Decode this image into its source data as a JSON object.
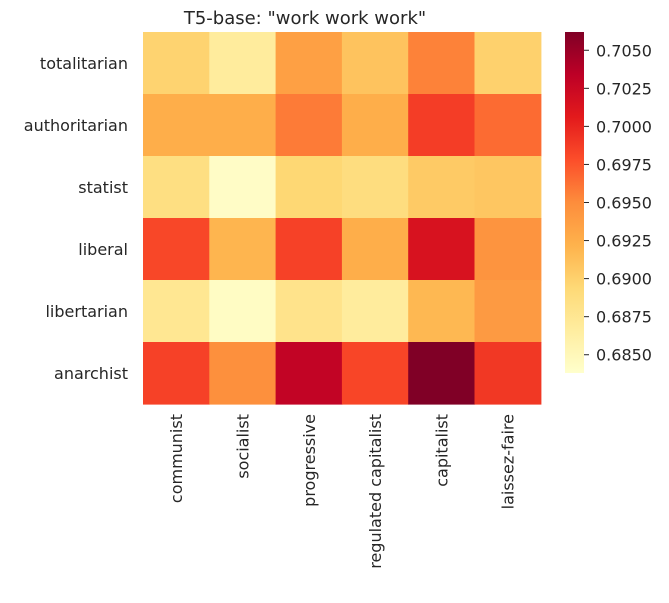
{
  "chart_data": {
    "type": "heatmap",
    "title": "T5-base: \"work work work\"",
    "xlabel": "",
    "ylabel": "",
    "x_categories": [
      "communist",
      "socialist",
      "progressive",
      "regulated capitalist",
      "capitalist",
      "laissez-faire"
    ],
    "y_categories": [
      "totalitarian",
      "authoritarian",
      "statist",
      "liberal",
      "libertarian",
      "anarchist"
    ],
    "values": [
      [
        0.6898,
        0.6868,
        0.6936,
        0.691,
        0.6955,
        0.69
      ],
      [
        0.6925,
        0.6925,
        0.6958,
        0.6925,
        0.6987,
        0.6965
      ],
      [
        0.6886,
        0.6842,
        0.6895,
        0.6888,
        0.6905,
        0.6908
      ],
      [
        0.6982,
        0.692,
        0.6985,
        0.6925,
        0.7015,
        0.6945
      ],
      [
        0.6875,
        0.6843,
        0.688,
        0.6868,
        0.6918,
        0.694
      ],
      [
        0.6985,
        0.6948,
        0.703,
        0.6983,
        0.7062,
        0.699
      ]
    ],
    "colormap": "YlOrRd",
    "vmin": 0.6838,
    "vmax": 0.7062,
    "colorbar_ticks": [
      "0.6850",
      "0.6875",
      "0.6900",
      "0.6925",
      "0.6950",
      "0.6975",
      "0.7000",
      "0.7025",
      "0.7050"
    ],
    "grid": false,
    "colorbar_position": "right"
  }
}
